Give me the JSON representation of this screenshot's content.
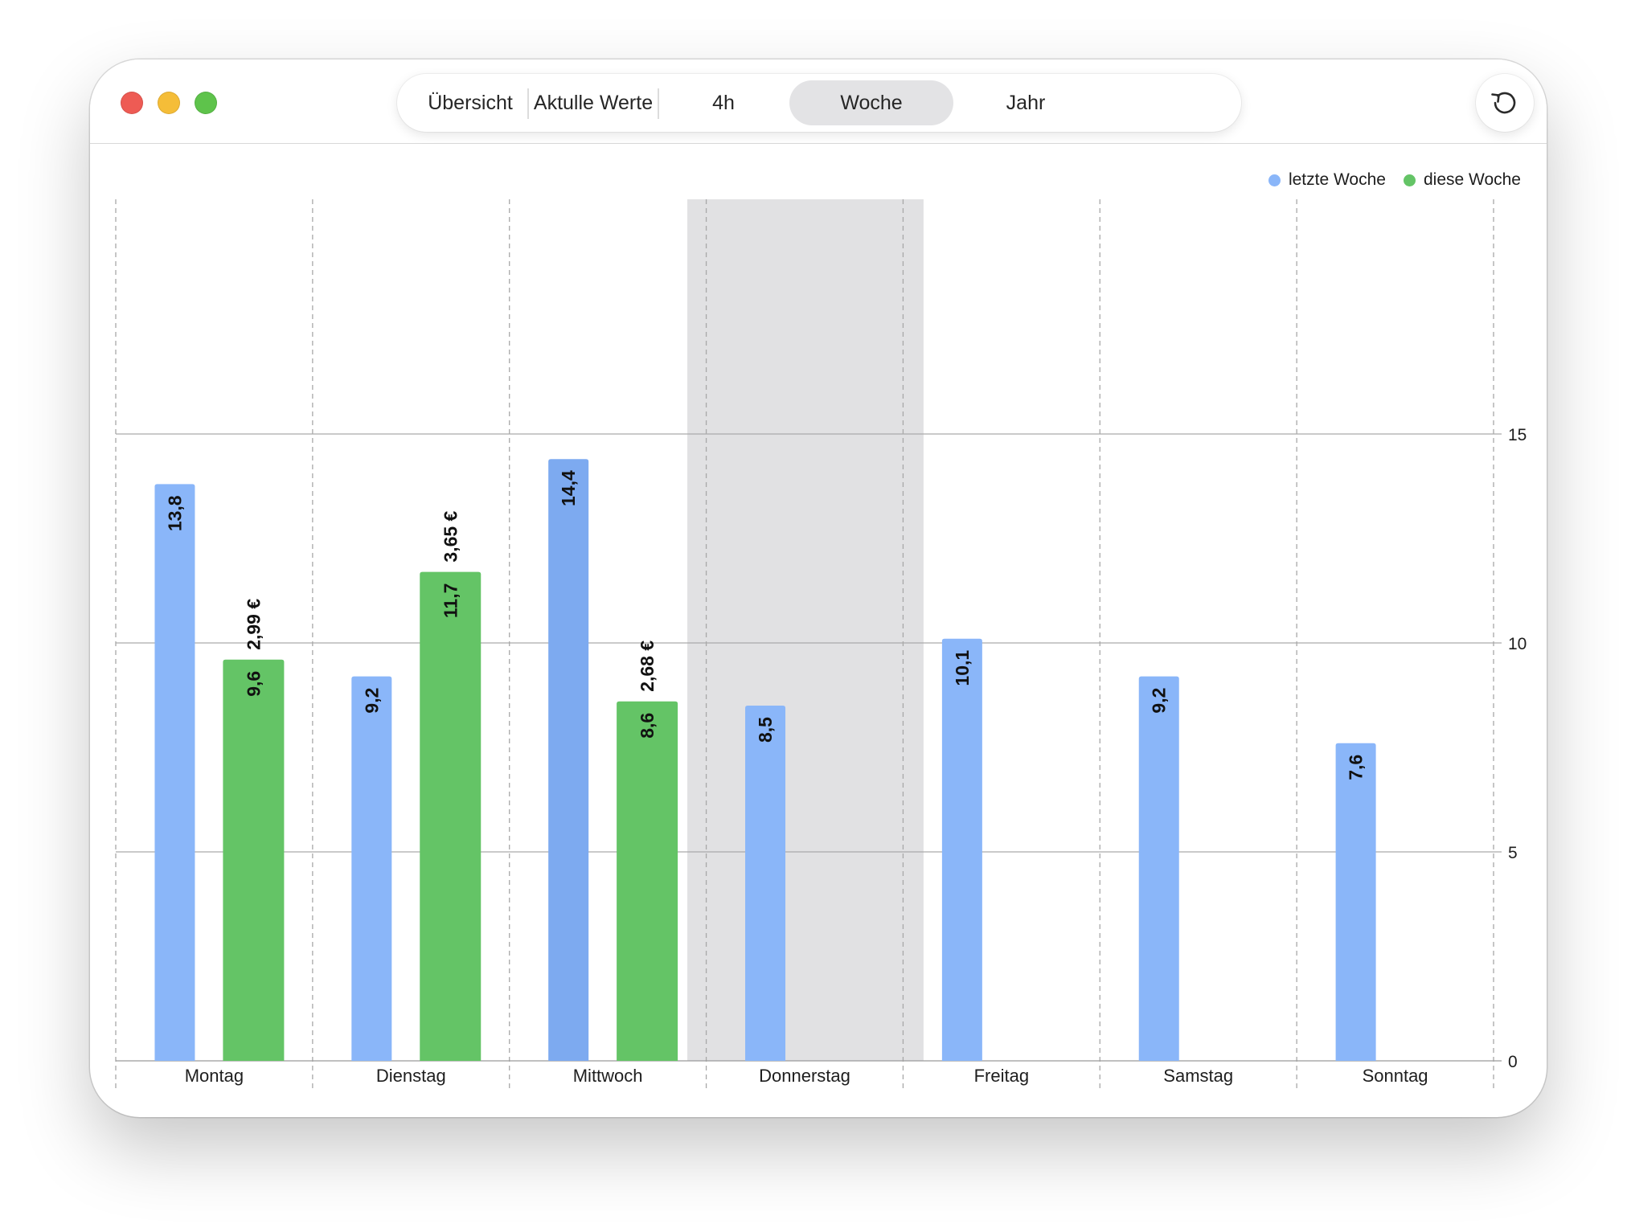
{
  "window": {
    "tabs": [
      {
        "label": "Übersicht",
        "active": false
      },
      {
        "label": "Aktulle Werte",
        "active": false
      },
      {
        "label": "4h",
        "active": false
      },
      {
        "label": "Woche",
        "active": true
      },
      {
        "label": "Jahr",
        "active": false
      }
    ],
    "refresh_icon": "arrow-counterclockwise-icon"
  },
  "chart_data": {
    "type": "bar",
    "categories": [
      "Montag",
      "Dienstag",
      "Mittwoch",
      "Donnerstag",
      "Freitag",
      "Samstag",
      "Sonntag"
    ],
    "series": [
      {
        "name": "letzte Woche",
        "color": "#8ab6f9",
        "values": [
          13.8,
          9.2,
          14.4,
          8.5,
          10.1,
          9.2,
          7.6
        ],
        "value_labels": [
          "13,8",
          "9,2",
          "14,4",
          "8,5",
          "10,1",
          "9,2",
          "7,6"
        ]
      },
      {
        "name": "diese Woche",
        "color": "#64c466",
        "values": [
          9.6,
          11.7,
          8.6,
          null,
          null,
          null,
          null
        ],
        "value_labels": [
          "9,6",
          "11,7",
          "8,6",
          null,
          null,
          null,
          null
        ],
        "cost_labels": [
          "2,99 €",
          "3,65 €",
          "2,68 €",
          null,
          null,
          null,
          null
        ]
      }
    ],
    "highlighted_category": "Mittwoch",
    "y_ticks": [
      0,
      5,
      10,
      15
    ],
    "y_tick_labels": [
      "0",
      "5",
      "10",
      "15"
    ],
    "ylim": [
      0,
      15.8
    ],
    "y_axis_position": "right",
    "legend_position": "top-right",
    "grid": {
      "horizontal": true,
      "vertical_dashed": true
    }
  }
}
